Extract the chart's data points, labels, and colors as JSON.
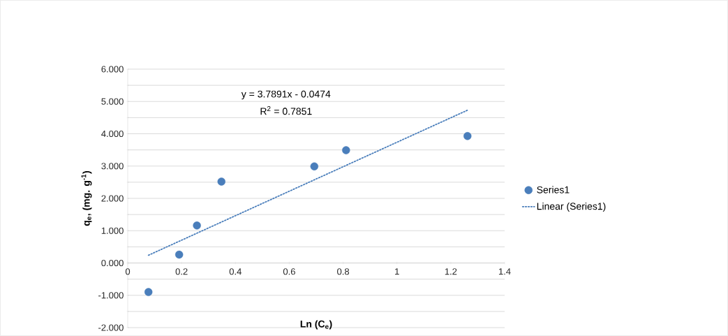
{
  "chart_data": {
    "type": "scatter",
    "xlabel": "Ln (C$_{e}$)",
    "ylabel": "q$_{e}$, (mg. g$^{-1}$)",
    "annotations": [
      "y = 3.7891x - 0.0474",
      "R$^{2}$ = 0.7851"
    ],
    "xlim": [
      0,
      1.4
    ],
    "xticks": [
      0,
      0.2,
      0.4,
      0.6,
      0.8,
      1,
      1.2,
      1.4
    ],
    "ylim": [
      -2,
      6
    ],
    "yticks": [
      {
        "value": -2,
        "label": "-2.000"
      },
      {
        "value": -1,
        "label": "-1.000"
      },
      {
        "value": 0,
        "label": "0.000"
      },
      {
        "value": 1,
        "label": "1.000"
      },
      {
        "value": 2,
        "label": "2.000"
      },
      {
        "value": 3,
        "label": "3.000"
      },
      {
        "value": 4,
        "label": "4.000"
      },
      {
        "value": 5,
        "label": "5.000"
      },
      {
        "value": 6,
        "label": "6.000"
      }
    ],
    "grid": "y",
    "legend": "right",
    "series": [
      {
        "name": "Series1",
        "color": "#4a7ebb",
        "marker": "circle",
        "x": [
          0.077,
          0.191,
          0.257,
          0.348,
          0.693,
          0.811,
          1.262
        ],
        "values": [
          -0.9,
          0.26,
          1.16,
          2.52,
          2.99,
          3.49,
          3.93
        ]
      },
      {
        "name": "Linear (Series1)",
        "type": "line",
        "color": "#4a7ebb",
        "line_style": "dotted",
        "marker": "none",
        "x": [
          0.077,
          1.262
        ],
        "values": [
          0.24,
          4.73
        ]
      }
    ]
  }
}
